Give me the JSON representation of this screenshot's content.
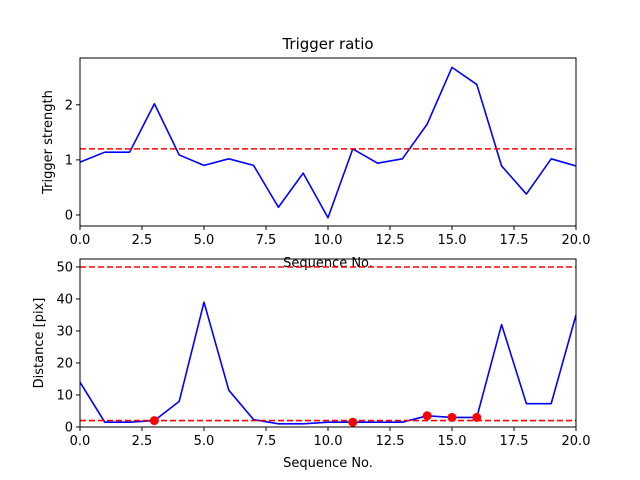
{
  "chart_data": [
    {
      "type": "line",
      "title": "Trigger ratio",
      "xlabel": "Sequence No.",
      "ylabel": "Trigger strength",
      "xlim": [
        0,
        20
      ],
      "ylim": [
        -0.2,
        2.85
      ],
      "xticks": [
        0,
        2.5,
        5,
        7.5,
        10,
        12.5,
        15,
        17.5,
        20
      ],
      "xtick_labels": [
        "0.0",
        "2.5",
        "5.0",
        "7.5",
        "10.0",
        "12.5",
        "15.0",
        "17.5",
        "20.0"
      ],
      "yticks": [
        0,
        1,
        2
      ],
      "ytick_labels": [
        "0",
        "1",
        "2"
      ],
      "grid": false,
      "series": [
        {
          "color": "#0000ff",
          "style": "solid",
          "x": [
            0,
            1,
            2,
            3,
            4,
            5,
            6,
            7,
            8,
            9,
            10,
            11,
            12,
            13,
            14,
            15,
            16,
            17,
            18,
            19,
            20
          ],
          "values": [
            0.96,
            1.14,
            1.14,
            2.02,
            1.09,
            0.9,
            1.02,
            0.9,
            0.14,
            0.76,
            -0.05,
            1.2,
            0.94,
            1.02,
            1.65,
            2.68,
            2.37,
            0.89,
            0.38,
            1.02,
            0.89
          ]
        }
      ],
      "hlines": [
        {
          "y": 1.2,
          "color": "#ff0000",
          "style": "dashed"
        }
      ]
    },
    {
      "type": "line",
      "title": "",
      "xlabel": "Sequence No.",
      "ylabel": "Distance [pix]",
      "xlim": [
        0,
        20
      ],
      "ylim": [
        0,
        52.5
      ],
      "xticks": [
        0,
        2.5,
        5,
        7.5,
        10,
        12.5,
        15,
        17.5,
        20
      ],
      "xtick_labels": [
        "0.0",
        "2.5",
        "5.0",
        "7.5",
        "10.0",
        "12.5",
        "15.0",
        "17.5",
        "20.0"
      ],
      "yticks": [
        0,
        10,
        20,
        30,
        40,
        50
      ],
      "ytick_labels": [
        "0",
        "10",
        "20",
        "30",
        "40",
        "50"
      ],
      "grid": false,
      "series": [
        {
          "color": "#0000ff",
          "style": "solid",
          "x": [
            0,
            1,
            2,
            3,
            4,
            5,
            6,
            7,
            8,
            9,
            10,
            11,
            12,
            13,
            14,
            15,
            16,
            17,
            18,
            19,
            20
          ],
          "values": [
            14,
            1.5,
            1.5,
            2,
            8,
            39,
            11.5,
            2.3,
            1,
            1,
            1.5,
            1.5,
            1.5,
            1.5,
            3.5,
            3,
            3,
            32,
            7.3,
            7.3,
            35
          ]
        }
      ],
      "markers": {
        "color": "#ff0000",
        "x": [
          3,
          11,
          14,
          15,
          16
        ],
        "values": [
          2,
          1.5,
          3.5,
          3,
          3
        ]
      },
      "hlines": [
        {
          "y": 50,
          "color": "#ff0000",
          "style": "dashed"
        },
        {
          "y": 2,
          "color": "#ff0000",
          "style": "dashed"
        }
      ]
    }
  ]
}
